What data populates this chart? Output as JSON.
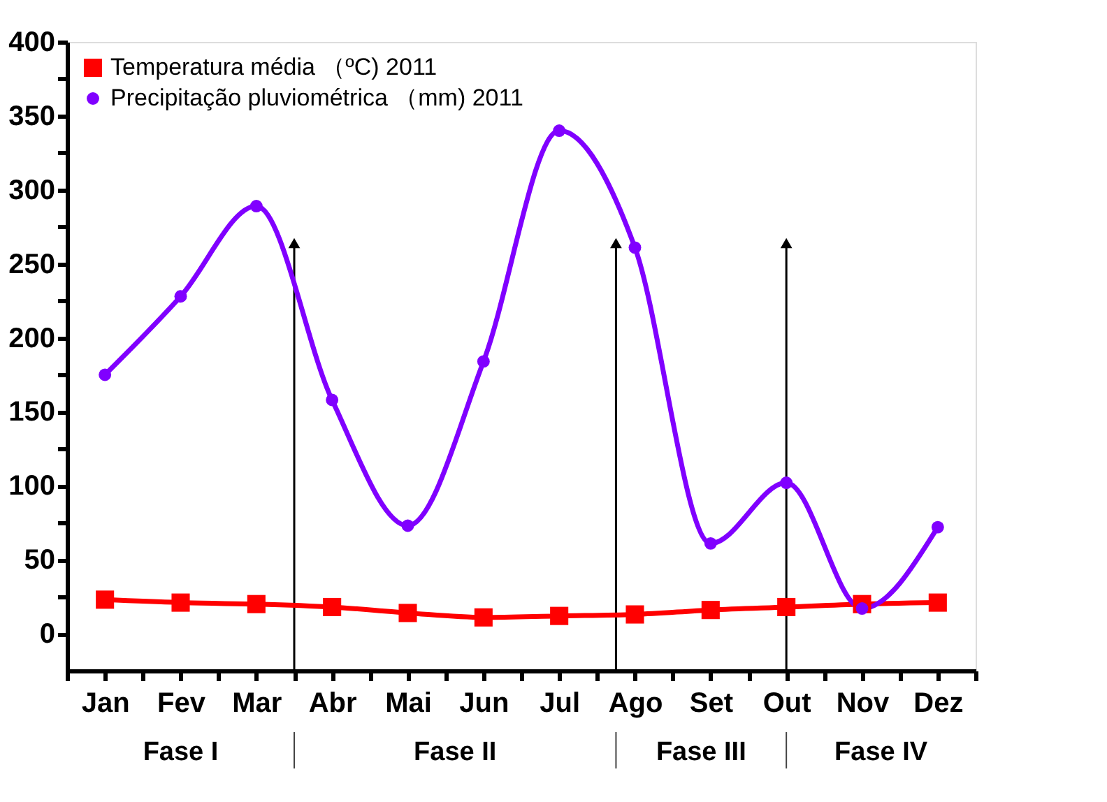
{
  "chart_data": {
    "type": "line",
    "categories": [
      "Jan",
      "Fev",
      "Mar",
      "Abr",
      "Mai",
      "Jun",
      "Jul",
      "Ago",
      "Set",
      "Out",
      "Nov",
      "Dez"
    ],
    "ylim": [
      -25,
      400
    ],
    "yticks": [
      0,
      {
        "value": 25,
        "label": null
      },
      50,
      {
        "value": 75,
        "label": null
      },
      100,
      {
        "value": 125,
        "label": null
      },
      150,
      {
        "value": 175,
        "label": null
      },
      200,
      {
        "value": 225,
        "label": null
      },
      250,
      {
        "value": 275,
        "label": null
      },
      300,
      {
        "value": 325,
        "label": null
      },
      350,
      {
        "value": 375,
        "label": null
      },
      400
    ],
    "series": [
      {
        "name": "Temperatura média （ºC)  2011",
        "color": "#ff0000",
        "marker": "square",
        "values": [
          23,
          21,
          20,
          18,
          14,
          11,
          12,
          13,
          16,
          18,
          20,
          21
        ]
      },
      {
        "name": "Precipitação pluviométrica （mm)   2011",
        "color": "#8000ff",
        "marker": "circle",
        "values": [
          175,
          228,
          289,
          158,
          73,
          184,
          340,
          261,
          61,
          102,
          17,
          72
        ]
      }
    ],
    "annotations": [
      "Fase I",
      "Fase II",
      "Fase III",
      "Fase IV"
    ],
    "legend": "top left",
    "grid": false,
    "line_style": "solid"
  }
}
